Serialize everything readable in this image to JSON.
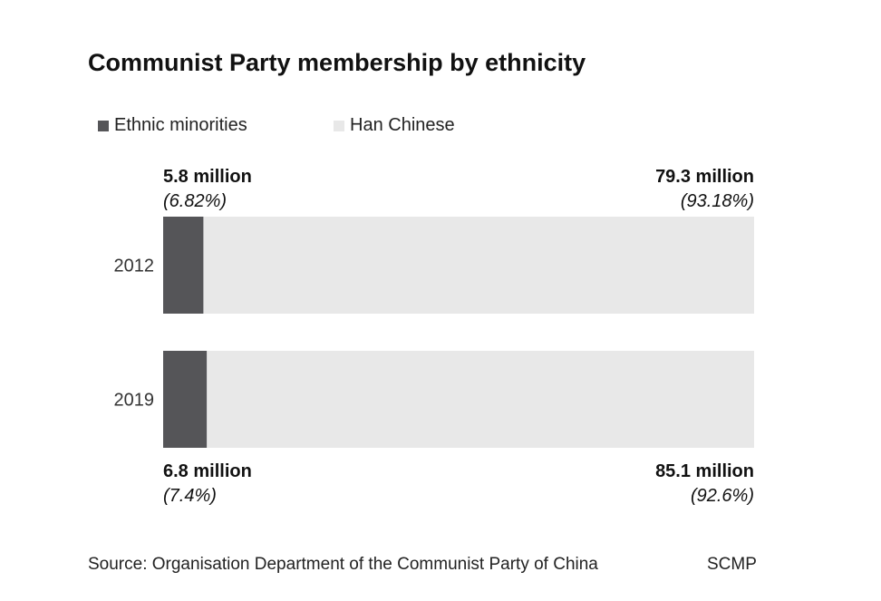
{
  "chart_data": {
    "type": "bar",
    "stacked": true,
    "orientation": "horizontal",
    "title": "Communist Party membership by ethnicity",
    "categories": [
      "2012",
      "2019"
    ],
    "series": [
      {
        "name": "Ethnic minorities",
        "color": "#555558",
        "values": [
          5.8,
          6.8
        ],
        "value_labels": [
          "5.8 million",
          "6.8 million"
        ],
        "percent_labels": [
          "(6.82%)",
          "(7.4%)"
        ]
      },
      {
        "name": "Han Chinese",
        "color": "#e8e8e8",
        "values": [
          79.3,
          85.1
        ],
        "value_labels": [
          "79.3 million",
          "85.1 million"
        ],
        "percent_labels": [
          "(93.18%)",
          "(92.6%)"
        ]
      }
    ],
    "legend_position": "top-left",
    "grid": false
  },
  "footer": {
    "source": "Source: Organisation Department of the Communist Party of China",
    "credit": "SCMP"
  }
}
